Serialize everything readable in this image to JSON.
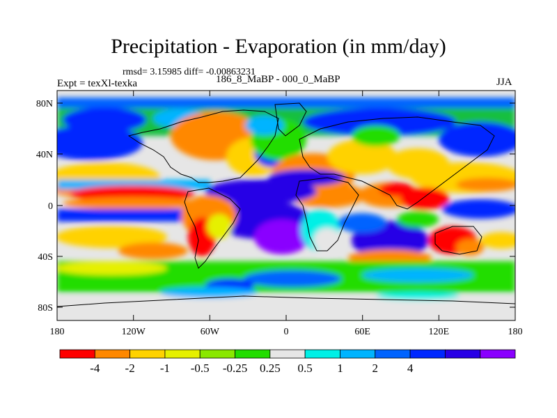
{
  "title": "Precipitation - Evaporation (in mm/day)",
  "stats": "rmsd= 3.15985 diff= -0.00863231",
  "experiment": "Expt = texXl-texka",
  "difference_label": "186_8_MaBP - 000_0_MaBP",
  "season": "JJA",
  "y_axis_labels": [
    "80N",
    "40N",
    "0",
    "40S",
    "80S"
  ],
  "x_axis_labels": [
    "180",
    "120W",
    "60W",
    "0",
    "60E",
    "120E",
    "180"
  ],
  "colorbar": {
    "labels": [
      "-4",
      "-2",
      "-1",
      "-0.5",
      "-0.25",
      "0.25",
      "0.5",
      "1",
      "2",
      "4"
    ],
    "colors": [
      "#ff0000",
      "#ff8800",
      "#ffd200",
      "#e6f000",
      "#8ae800",
      "#22dd00",
      "#e6e6e6",
      "#00f0e6",
      "#00b4ff",
      "#0064ff",
      "#0028ff",
      "#2800e6",
      "#8a00ff"
    ]
  },
  "colors": {
    "land_outline": "#000000",
    "neutral": "#e6e6e6"
  }
}
